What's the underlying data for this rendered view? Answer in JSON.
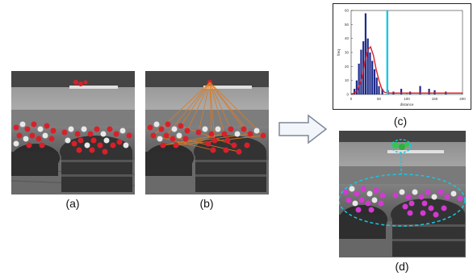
{
  "figure": {
    "panels": [
      {
        "id": "a",
        "caption": "(a)",
        "content": "grayscale photo of flower planters; selected flowers shown in red"
      },
      {
        "id": "b",
        "caption": "(b)",
        "content": "same photo with orange graph edges connecting red flower points to the query point at the top"
      },
      {
        "id": "c",
        "caption": "(c)",
        "content": "histogram of distances with fitted red curve and cyan threshold line"
      },
      {
        "id": "d",
        "caption": "(d)",
        "content": "photo with magenta flowers enclosed by a cyan dashed ellipse, linked to a green highlighted query region"
      }
    ],
    "arrow": "right-arrow-icon",
    "colors": {
      "selection": "#d8202a",
      "graph_edges": "#e07a1e",
      "threshold": "#18c8e0",
      "cluster": "#d23ad2",
      "query": "#34c74a"
    }
  },
  "chart_data": {
    "type": "bar",
    "title": "",
    "xlabel": "distance",
    "ylabel": "freq",
    "xlim": [
      0,
      200
    ],
    "ylim": [
      0,
      60
    ],
    "xticks": [
      "0",
      "50",
      "100",
      "150",
      "200"
    ],
    "yticks": [
      "0",
      "10",
      "20",
      "30",
      "40",
      "50",
      "60"
    ],
    "x": [
      6,
      10,
      14,
      18,
      22,
      26,
      30,
      34,
      38,
      42,
      46,
      50,
      56,
      66,
      76,
      90,
      106,
      124,
      140,
      150,
      170
    ],
    "values": [
      4,
      10,
      22,
      32,
      38,
      58,
      40,
      30,
      24,
      18,
      12,
      6,
      4,
      3,
      2,
      4,
      2,
      6,
      4,
      3,
      2
    ],
    "series": [
      {
        "name": "",
        "type": "curve",
        "x": [
          0,
          10,
          20,
          25,
          30,
          35,
          40,
          45,
          50,
          55,
          60,
          70,
          80,
          100,
          140,
          200
        ],
        "values": [
          0,
          2,
          12,
          24,
          32,
          34,
          28,
          18,
          10,
          4,
          1.5,
          1,
          1,
          1,
          1,
          1
        ]
      }
    ],
    "threshold": 65,
    "grid": false,
    "legend": false
  }
}
